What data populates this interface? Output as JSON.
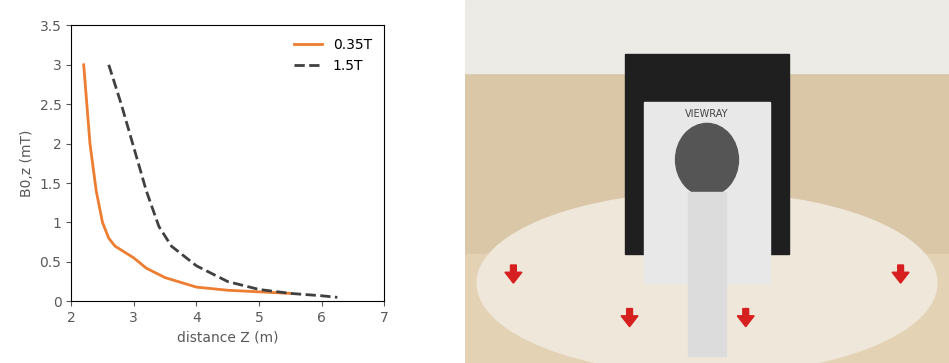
{
  "chart_data": {
    "type": "line",
    "x_label": "distance Z (m)",
    "y_label": "B0,z (mT)",
    "xlim": [
      2,
      7
    ],
    "xticks": [
      2,
      3,
      4,
      5,
      6,
      7
    ],
    "ylim": [
      0,
      3.5
    ],
    "yticks": [
      0,
      0.5,
      1,
      1.5,
      2,
      2.5,
      3,
      3.5
    ],
    "grid": false,
    "legend": "upper right",
    "series": [
      {
        "name": "0.35T",
        "color": "#ed7d31",
        "line_style": "solid",
        "x": [
          2.2,
          2.3,
          2.4,
          2.5,
          2.6,
          2.7,
          2.9,
          3.0,
          3.2,
          3.5,
          4.0,
          4.5,
          5.0,
          5.5
        ],
        "values": [
          3.0,
          2.0,
          1.4,
          1.0,
          0.8,
          0.7,
          0.6,
          0.55,
          0.42,
          0.3,
          0.18,
          0.14,
          0.12,
          0.1
        ]
      },
      {
        "name": "1.5T",
        "color": "#404040",
        "line_style": "dashed",
        "x": [
          2.6,
          2.8,
          3.0,
          3.2,
          3.4,
          3.6,
          4.0,
          4.5,
          5.0,
          5.5,
          6.0,
          6.25
        ],
        "values": [
          3.0,
          2.5,
          1.95,
          1.4,
          0.95,
          0.7,
          0.45,
          0.25,
          0.15,
          0.1,
          0.07,
          0.05
        ]
      }
    ]
  },
  "photo": {
    "machine_label": "VIEWRAY"
  }
}
